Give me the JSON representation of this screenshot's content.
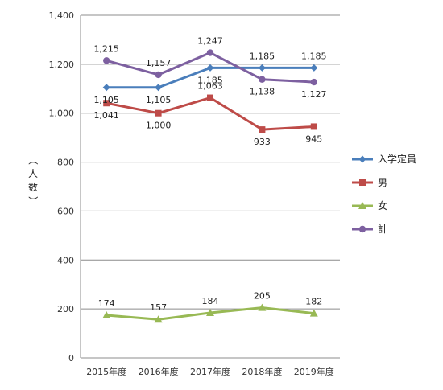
{
  "chart_data": {
    "type": "line",
    "categories": [
      "2015年度",
      "2016年度",
      "2017年度",
      "2018年度",
      "2019年度"
    ],
    "ylabel": "（人数）",
    "ylim": [
      0,
      1400
    ],
    "yticks": [
      0,
      200,
      400,
      600,
      800,
      1000,
      1200,
      1400
    ],
    "ytick_labels": [
      "0",
      "200",
      "400",
      "600",
      "800",
      "1,000",
      "1,200",
      "1,400"
    ],
    "grid": true,
    "legend_position": "right",
    "series": [
      {
        "name": "入学定員",
        "values": [
          1105,
          1105,
          1185,
          1185,
          1185
        ],
        "labels": [
          "1,105",
          "1,105",
          "1,185",
          "1,185",
          "1,185"
        ],
        "color": "#4a7ebb",
        "marker": "diamond"
      },
      {
        "name": "男",
        "values": [
          1041,
          1000,
          1063,
          933,
          945
        ],
        "labels": [
          "1,041",
          "1,000",
          "1,063",
          "933",
          "945"
        ],
        "color": "#be4b48",
        "marker": "square"
      },
      {
        "name": "女",
        "values": [
          174,
          157,
          184,
          205,
          182
        ],
        "labels": [
          "174",
          "157",
          "184",
          "205",
          "182"
        ],
        "color": "#98b954",
        "marker": "triangle"
      },
      {
        "name": "計",
        "values": [
          1215,
          1157,
          1247,
          1138,
          1127
        ],
        "labels": [
          "1,215",
          "1,157",
          "1,247",
          "1,138",
          "1,127"
        ],
        "color": "#7d60a0",
        "marker": "circle"
      }
    ]
  }
}
